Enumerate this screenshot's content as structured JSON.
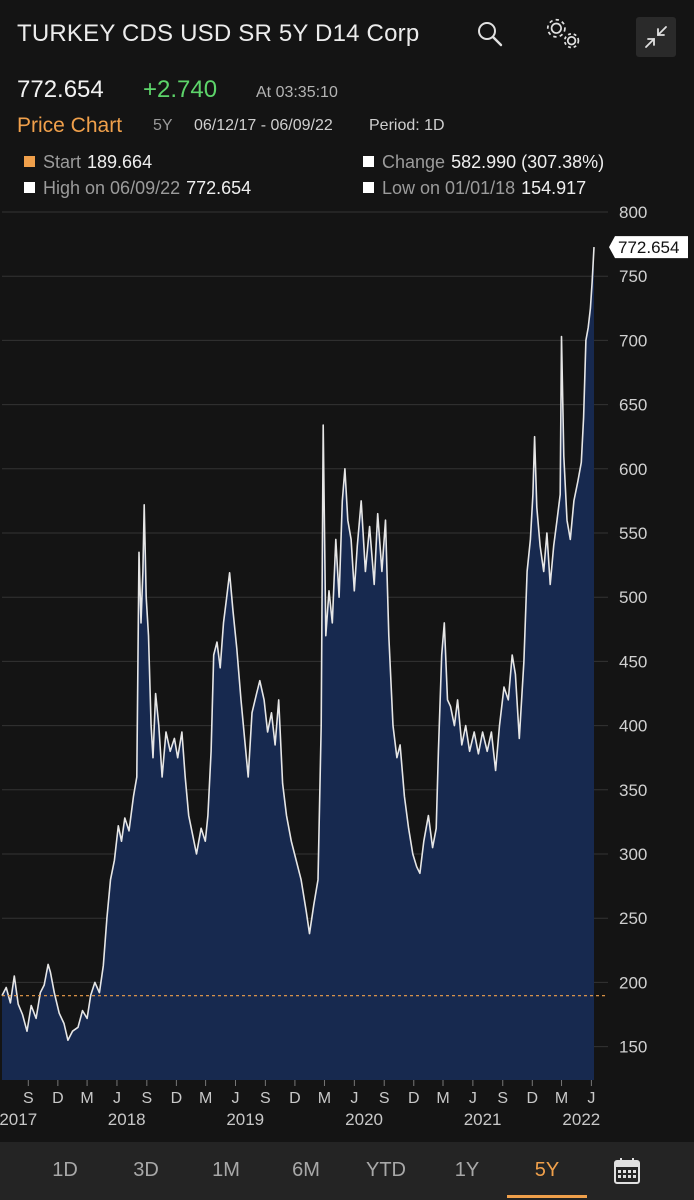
{
  "header": {
    "title": "TURKEY CDS USD SR 5Y D14 Corp",
    "icons": [
      "search-icon",
      "settings-icon",
      "collapse-icon"
    ]
  },
  "quote": {
    "last": "772.654",
    "change": "+2.740",
    "time": "At 03:35:10",
    "colors": {
      "up": "#5dd46a",
      "accent": "#f0a04b"
    }
  },
  "subheader": {
    "chart_label": "Price Chart",
    "range": "5Y",
    "dates": "06/12/17 - 06/09/22",
    "period": "Period: 1D"
  },
  "stats": {
    "start_label": "Start",
    "start_value": "189.664",
    "change_label": "Change",
    "change_value": "582.990 (307.38%)",
    "high_label": "High on 06/09/22",
    "high_value": "772.654",
    "low_label": "Low on 01/01/18",
    "low_value": "154.917"
  },
  "tabs": [
    "1D",
    "3D",
    "1M",
    "6M",
    "YTD",
    "1Y",
    "5Y"
  ],
  "active_tab": "5Y",
  "chart_data": {
    "type": "area",
    "title": "",
    "xlabel": "",
    "ylabel": "",
    "ylim": [
      125,
      800
    ],
    "yticks": [
      150,
      200,
      250,
      300,
      350,
      400,
      450,
      500,
      550,
      600,
      650,
      700,
      750,
      800
    ],
    "xlim": [
      "2017-06-12",
      "2022-06-09"
    ],
    "last_label": "772.654",
    "reference_line": {
      "value": 189.664,
      "label": "Start",
      "color": "#f0a04b"
    },
    "grid": true,
    "month_ticks": [
      {
        "label": "S",
        "date": "2017-09-01"
      },
      {
        "label": "D",
        "date": "2017-12-01"
      },
      {
        "label": "M",
        "date": "2018-03-01"
      },
      {
        "label": "J",
        "date": "2018-06-01"
      },
      {
        "label": "S",
        "date": "2018-09-01"
      },
      {
        "label": "D",
        "date": "2018-12-01"
      },
      {
        "label": "M",
        "date": "2019-03-01"
      },
      {
        "label": "J",
        "date": "2019-06-01"
      },
      {
        "label": "S",
        "date": "2019-09-01"
      },
      {
        "label": "D",
        "date": "2019-12-01"
      },
      {
        "label": "M",
        "date": "2020-03-01"
      },
      {
        "label": "J",
        "date": "2020-06-01"
      },
      {
        "label": "S",
        "date": "2020-09-01"
      },
      {
        "label": "D",
        "date": "2020-12-01"
      },
      {
        "label": "M",
        "date": "2021-03-01"
      },
      {
        "label": "J",
        "date": "2021-06-01"
      },
      {
        "label": "S",
        "date": "2021-09-01"
      },
      {
        "label": "D",
        "date": "2021-12-01"
      },
      {
        "label": "M",
        "date": "2022-03-01"
      },
      {
        "label": "J",
        "date": "2022-06-01"
      }
    ],
    "year_ticks": [
      {
        "label": "2017",
        "date": "2017-08-01"
      },
      {
        "label": "2018",
        "date": "2018-07-01"
      },
      {
        "label": "2019",
        "date": "2019-07-01"
      },
      {
        "label": "2020",
        "date": "2020-07-01"
      },
      {
        "label": "2021",
        "date": "2021-07-01"
      },
      {
        "label": "2022",
        "date": "2022-05-01"
      }
    ],
    "series": [
      {
        "values": [
          [
            "2017-06-12",
            189.7
          ],
          [
            "2017-06-25",
            196
          ],
          [
            "2017-07-08",
            184
          ],
          [
            "2017-07-20",
            205
          ],
          [
            "2017-08-01",
            183
          ],
          [
            "2017-08-14",
            175
          ],
          [
            "2017-08-28",
            162
          ],
          [
            "2017-09-10",
            182
          ],
          [
            "2017-09-25",
            172
          ],
          [
            "2017-10-08",
            192
          ],
          [
            "2017-10-20",
            198
          ],
          [
            "2017-11-01",
            214
          ],
          [
            "2017-11-08",
            208
          ],
          [
            "2017-11-20",
            192
          ],
          [
            "2017-12-05",
            176
          ],
          [
            "2017-12-20",
            168
          ],
          [
            "2018-01-01",
            155
          ],
          [
            "2018-01-15",
            162
          ],
          [
            "2018-02-01",
            165
          ],
          [
            "2018-02-15",
            178
          ],
          [
            "2018-03-01",
            172
          ],
          [
            "2018-03-12",
            190
          ],
          [
            "2018-03-25",
            200
          ],
          [
            "2018-04-08",
            192
          ],
          [
            "2018-04-20",
            213
          ],
          [
            "2018-05-01",
            250
          ],
          [
            "2018-05-12",
            280
          ],
          [
            "2018-05-24",
            295
          ],
          [
            "2018-06-05",
            322
          ],
          [
            "2018-06-15",
            310
          ],
          [
            "2018-06-25",
            328
          ],
          [
            "2018-07-08",
            318
          ],
          [
            "2018-07-22",
            345
          ],
          [
            "2018-08-01",
            360
          ],
          [
            "2018-08-08",
            535
          ],
          [
            "2018-08-14",
            480
          ],
          [
            "2018-08-20",
            520
          ],
          [
            "2018-08-24",
            572
          ],
          [
            "2018-08-30",
            500
          ],
          [
            "2018-09-06",
            470
          ],
          [
            "2018-09-14",
            400
          ],
          [
            "2018-09-20",
            375
          ],
          [
            "2018-09-28",
            425
          ],
          [
            "2018-10-08",
            400
          ],
          [
            "2018-10-18",
            360
          ],
          [
            "2018-10-30",
            395
          ],
          [
            "2018-11-12",
            380
          ],
          [
            "2018-11-25",
            390
          ],
          [
            "2018-12-05",
            375
          ],
          [
            "2018-12-18",
            395
          ],
          [
            "2018-12-28",
            360
          ],
          [
            "2019-01-08",
            330
          ],
          [
            "2019-01-20",
            315
          ],
          [
            "2019-02-01",
            300
          ],
          [
            "2019-02-15",
            320
          ],
          [
            "2019-02-28",
            310
          ],
          [
            "2019-03-08",
            330
          ],
          [
            "2019-03-18",
            380
          ],
          [
            "2019-03-26",
            455
          ],
          [
            "2019-04-05",
            465
          ],
          [
            "2019-04-15",
            445
          ],
          [
            "2019-04-25",
            480
          ],
          [
            "2019-05-05",
            500
          ],
          [
            "2019-05-14",
            519
          ],
          [
            "2019-05-24",
            490
          ],
          [
            "2019-06-05",
            460
          ],
          [
            "2019-06-18",
            420
          ],
          [
            "2019-07-01",
            385
          ],
          [
            "2019-07-10",
            360
          ],
          [
            "2019-07-22",
            410
          ],
          [
            "2019-08-05",
            425
          ],
          [
            "2019-08-15",
            435
          ],
          [
            "2019-08-28",
            420
          ],
          [
            "2019-09-08",
            395
          ],
          [
            "2019-09-20",
            410
          ],
          [
            "2019-10-01",
            385
          ],
          [
            "2019-10-12",
            420
          ],
          [
            "2019-10-24",
            355
          ],
          [
            "2019-11-05",
            330
          ],
          [
            "2019-11-20",
            310
          ],
          [
            "2019-12-05",
            295
          ],
          [
            "2019-12-20",
            280
          ],
          [
            "2020-01-05",
            255
          ],
          [
            "2020-01-15",
            238
          ],
          [
            "2020-01-28",
            260
          ],
          [
            "2020-02-10",
            280
          ],
          [
            "2020-02-20",
            400
          ],
          [
            "2020-02-26",
            634
          ],
          [
            "2020-03-05",
            470
          ],
          [
            "2020-03-15",
            505
          ],
          [
            "2020-03-25",
            480
          ],
          [
            "2020-04-05",
            545
          ],
          [
            "2020-04-15",
            500
          ],
          [
            "2020-04-25",
            575
          ],
          [
            "2020-05-03",
            600
          ],
          [
            "2020-05-12",
            560
          ],
          [
            "2020-05-22",
            545
          ],
          [
            "2020-06-01",
            505
          ],
          [
            "2020-06-10",
            540
          ],
          [
            "2020-06-22",
            575
          ],
          [
            "2020-07-05",
            520
          ],
          [
            "2020-07-18",
            555
          ],
          [
            "2020-08-01",
            510
          ],
          [
            "2020-08-12",
            565
          ],
          [
            "2020-08-25",
            520
          ],
          [
            "2020-09-05",
            560
          ],
          [
            "2020-09-15",
            470
          ],
          [
            "2020-09-28",
            400
          ],
          [
            "2020-10-10",
            375
          ],
          [
            "2020-10-20",
            385
          ],
          [
            "2020-11-02",
            345
          ],
          [
            "2020-11-15",
            320
          ],
          [
            "2020-11-28",
            300
          ],
          [
            "2020-12-10",
            290
          ],
          [
            "2020-12-20",
            285
          ],
          [
            "2021-01-01",
            310
          ],
          [
            "2021-01-15",
            330
          ],
          [
            "2021-01-28",
            305
          ],
          [
            "2021-02-08",
            320
          ],
          [
            "2021-02-15",
            380
          ],
          [
            "2021-02-25",
            455
          ],
          [
            "2021-03-05",
            480
          ],
          [
            "2021-03-15",
            420
          ],
          [
            "2021-03-24",
            415
          ],
          [
            "2021-04-05",
            400
          ],
          [
            "2021-04-15",
            420
          ],
          [
            "2021-04-28",
            385
          ],
          [
            "2021-05-10",
            400
          ],
          [
            "2021-05-22",
            380
          ],
          [
            "2021-06-05",
            395
          ],
          [
            "2021-06-18",
            378
          ],
          [
            "2021-07-01",
            395
          ],
          [
            "2021-07-15",
            380
          ],
          [
            "2021-07-28",
            395
          ],
          [
            "2021-08-10",
            365
          ],
          [
            "2021-08-22",
            400
          ],
          [
            "2021-09-05",
            430
          ],
          [
            "2021-09-18",
            420
          ],
          [
            "2021-09-30",
            455
          ],
          [
            "2021-10-10",
            440
          ],
          [
            "2021-10-22",
            390
          ],
          [
            "2021-11-05",
            450
          ],
          [
            "2021-11-15",
            520
          ],
          [
            "2021-11-25",
            545
          ],
          [
            "2021-12-03",
            580
          ],
          [
            "2021-12-08",
            625
          ],
          [
            "2021-12-15",
            570
          ],
          [
            "2021-12-25",
            540
          ],
          [
            "2022-01-05",
            520
          ],
          [
            "2022-01-15",
            550
          ],
          [
            "2022-01-25",
            510
          ],
          [
            "2022-02-05",
            540
          ],
          [
            "2022-02-15",
            560
          ],
          [
            "2022-02-25",
            580
          ],
          [
            "2022-03-01",
            703
          ],
          [
            "2022-03-08",
            610
          ],
          [
            "2022-03-18",
            560
          ],
          [
            "2022-03-28",
            545
          ],
          [
            "2022-04-08",
            575
          ],
          [
            "2022-04-20",
            590
          ],
          [
            "2022-05-01",
            605
          ],
          [
            "2022-05-08",
            640
          ],
          [
            "2022-05-15",
            700
          ],
          [
            "2022-05-22",
            710
          ],
          [
            "2022-05-29",
            725
          ],
          [
            "2022-06-03",
            745
          ],
          [
            "2022-06-09",
            772.654
          ]
        ]
      }
    ]
  }
}
